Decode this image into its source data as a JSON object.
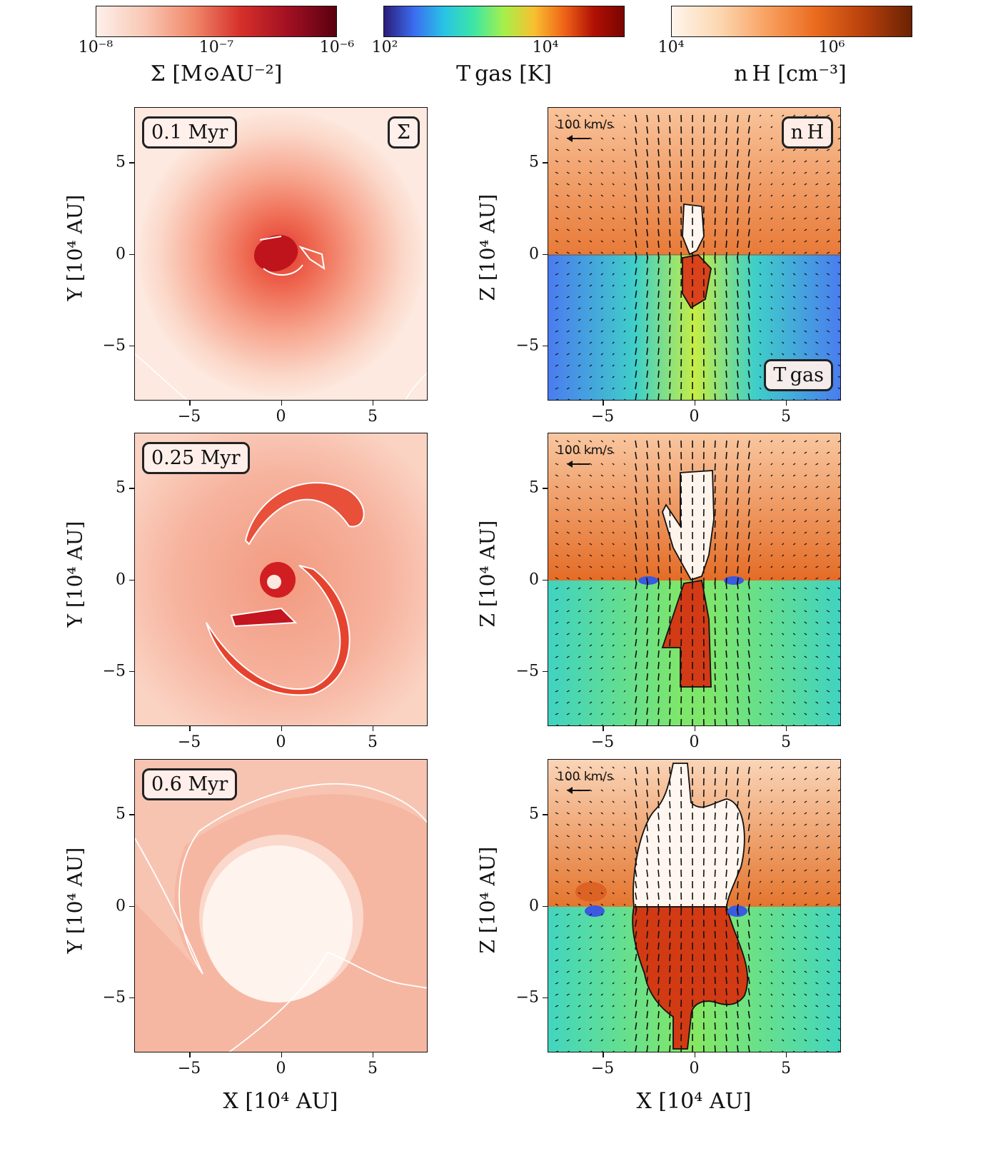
{
  "colorbars": [
    {
      "name": "sigma",
      "gradient": [
        "#fdf0ea",
        "#f9c8b5",
        "#f08a6c",
        "#d6302a",
        "#a11022",
        "#5a0010"
      ],
      "ticks": [
        "10⁻⁸",
        "10⁻⁷",
        "10⁻⁶"
      ],
      "label": "Σ  [M⊙AU⁻²]"
    },
    {
      "name": "tgas",
      "gradient": [
        "#2b1d7a",
        "#3b6df0",
        "#28c3e6",
        "#3de6a4",
        "#a6f04a",
        "#f8c030",
        "#f06418",
        "#b01004",
        "#7a0400"
      ],
      "ticks": [
        "10²",
        "10⁴"
      ],
      "label": "T gas  [K]"
    },
    {
      "name": "nh",
      "gradient": [
        "#fef5ec",
        "#fcd7b0",
        "#f8a060",
        "#ea6b1e",
        "#b8400c",
        "#6a2204"
      ],
      "ticks": [
        "10⁴",
        "10⁶"
      ],
      "label": "n H  [cm⁻³]"
    }
  ],
  "panels": {
    "times": [
      "0.1 Myr",
      "0.25 Myr",
      "0.6 Myr"
    ],
    "sigma_tag": "Σ",
    "nh_tag": "n H",
    "tgas_tag": "T gas",
    "scale_label": "100 km/s",
    "left_ylabel": "Y  [10⁴ AU]",
    "right_ylabel": "Z  [10⁴ AU]",
    "xlabel": "X  [10⁴ AU]"
  },
  "chart_data": [
    {
      "type": "heatmap",
      "panel": "left-0.1Myr",
      "quantity": "Σ",
      "colormap": "Reds",
      "clim": [
        1e-08,
        1e-06
      ],
      "xlim": [
        -8,
        8
      ],
      "ylim": [
        -8,
        8
      ],
      "xticks": [
        -5,
        0,
        5
      ],
      "yticks": [
        -5,
        0,
        5
      ],
      "xlabel": "",
      "ylabel": "Y  [10⁴ AU]",
      "annotation": "0.1 Myr"
    },
    {
      "type": "heatmap",
      "panel": "right-0.1Myr",
      "quantities": [
        "n H (z>0)",
        "T gas (z<0)"
      ],
      "xlim": [
        -8,
        8
      ],
      "ylim": [
        -8,
        8
      ],
      "xticks": [
        -5,
        0,
        5
      ],
      "yticks": [
        -5,
        0,
        5
      ],
      "xlabel": "",
      "ylabel": "Z  [10⁴ AU]",
      "vector_scale": "100 km/s"
    },
    {
      "type": "heatmap",
      "panel": "left-0.25Myr",
      "quantity": "Σ",
      "xlim": [
        -8,
        8
      ],
      "ylim": [
        -8,
        8
      ],
      "xticks": [
        -5,
        0,
        5
      ],
      "yticks": [
        -5,
        0,
        5
      ],
      "ylabel": "Y  [10⁴ AU]",
      "annotation": "0.25 Myr"
    },
    {
      "type": "heatmap",
      "panel": "right-0.25Myr",
      "quantities": [
        "n H (z>0)",
        "T gas (z<0)"
      ],
      "xlim": [
        -8,
        8
      ],
      "ylim": [
        -8,
        8
      ],
      "xticks": [
        -5,
        0,
        5
      ],
      "yticks": [
        -5,
        0,
        5
      ],
      "ylabel": "Z  [10⁴ AU]",
      "vector_scale": "100 km/s"
    },
    {
      "type": "heatmap",
      "panel": "left-0.6Myr",
      "quantity": "Σ",
      "xlim": [
        -8,
        8
      ],
      "ylim": [
        -8,
        8
      ],
      "xticks": [
        -5,
        0,
        5
      ],
      "yticks": [
        -5,
        0,
        5
      ],
      "xlabel": "X  [10⁴ AU]",
      "ylabel": "Y  [10⁴ AU]",
      "annotation": "0.6 Myr"
    },
    {
      "type": "heatmap",
      "panel": "right-0.6Myr",
      "quantities": [
        "n H (z>0)",
        "T gas (z<0)"
      ],
      "xlim": [
        -8,
        8
      ],
      "ylim": [
        -8,
        8
      ],
      "xticks": [
        -5,
        0,
        5
      ],
      "yticks": [
        -5,
        0,
        5
      ],
      "xlabel": "X  [10⁴ AU]",
      "ylabel": "Z  [10⁴ AU]",
      "vector_scale": "100 km/s"
    }
  ]
}
